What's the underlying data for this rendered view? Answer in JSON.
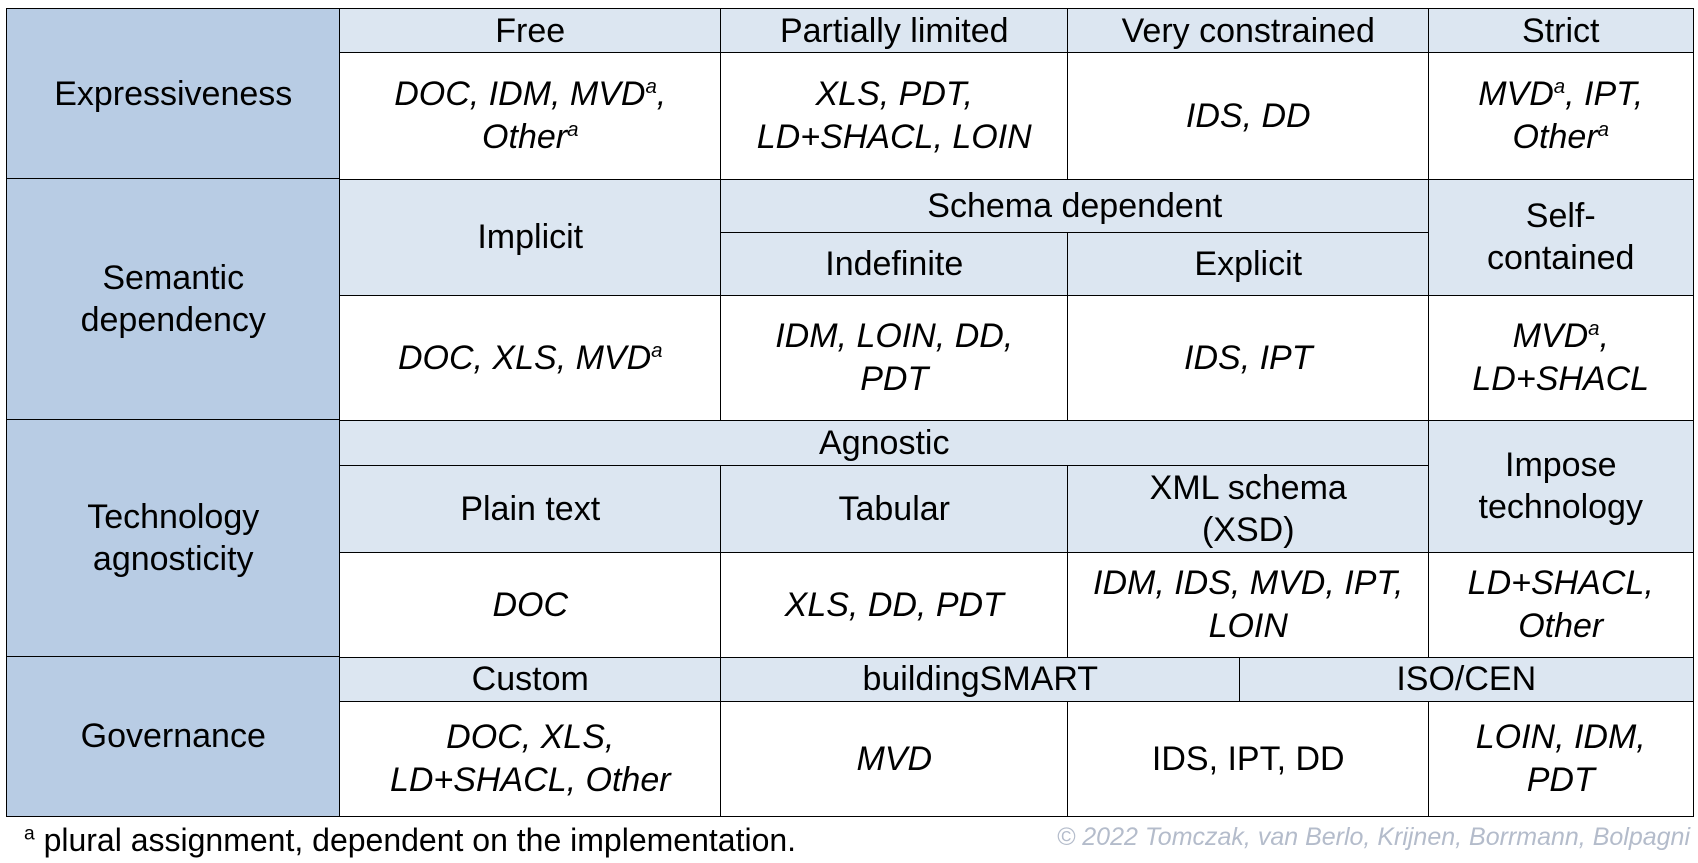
{
  "table": {
    "rows": [
      {
        "label": "Expressiveness",
        "headers": [
          "Free",
          "Partially limited",
          "Very constrained",
          "Strict"
        ],
        "values": [
          {
            "parts": [
              "DOC, IDM, MVD",
              {
                "sup": "a"
              },
              ", Other",
              {
                "sup": "a"
              }
            ]
          },
          {
            "parts": [
              "XLS, PDT, LD+SHACL, LOIN"
            ]
          },
          {
            "parts": [
              "IDS, DD"
            ]
          },
          {
            "parts": [
              "MVD",
              {
                "sup": "a"
              },
              ", IPT, Other",
              {
                "sup": "a"
              }
            ]
          }
        ]
      },
      {
        "label": "Semantic dependency",
        "headers": [
          "Implicit",
          "Schema dependent",
          "Indefinite",
          "Explicit",
          "Self-contained"
        ],
        "values": [
          {
            "parts": [
              "DOC, XLS, MVD",
              {
                "sup": "a"
              }
            ]
          },
          {
            "parts": [
              "IDM, LOIN, DD, PDT"
            ]
          },
          {
            "parts": [
              "IDS, IPT"
            ]
          },
          {
            "parts": [
              "MVD",
              {
                "sup": "a"
              },
              ", LD+SHACL"
            ]
          }
        ]
      },
      {
        "label": "Technology agnosticity",
        "headers": [
          "Agnostic",
          "Plain text",
          "Tabular",
          "XML schema (XSD)",
          "Impose technology"
        ],
        "values": [
          {
            "parts": [
              "DOC"
            ]
          },
          {
            "parts": [
              "XLS, DD, PDT"
            ]
          },
          {
            "parts": [
              "IDM, IDS, MVD, IPT, LOIN"
            ]
          },
          {
            "parts": [
              "LD+SHACL, Other"
            ]
          }
        ]
      },
      {
        "label": "Governance",
        "headers": [
          "Custom",
          "buildingSMART",
          "ISO/CEN"
        ],
        "values": [
          {
            "parts": [
              "DOC, XLS, LD+SHACL, Other"
            ]
          },
          {
            "parts": [
              "MVD"
            ]
          },
          {
            "parts": [
              "IDS, IPT, DD"
            ],
            "italic": false
          },
          {
            "parts": [
              "LOIN, IDM, PDT"
            ]
          }
        ]
      }
    ]
  },
  "footnote": {
    "marker": "a",
    "text": "plural assignment, dependent on the implementation."
  },
  "copyright": "© 2022 Tomczak, van Berlo, Krijnen, Borrmann, Bolpagni"
}
